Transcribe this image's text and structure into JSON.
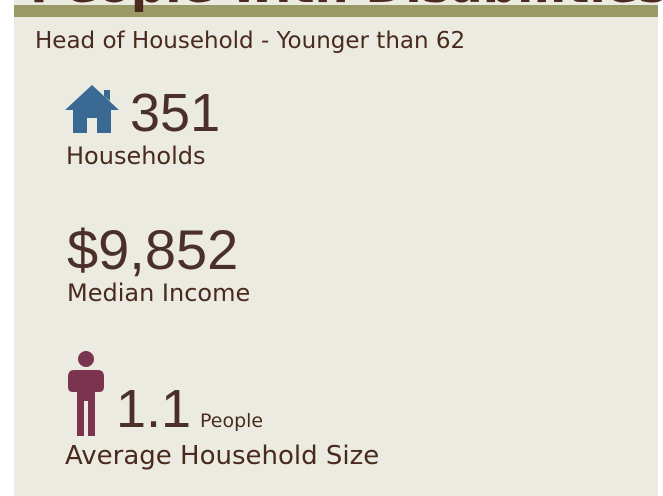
{
  "header": {
    "title": "People with Disabilities",
    "subtitle": "Head of Household - Younger than 62"
  },
  "stats": [
    {
      "value": "351",
      "label": "Households"
    },
    {
      "value": "$9,852",
      "label": "Median Income"
    },
    {
      "value": "1.1",
      "unit": "People",
      "label": "Average Household Size"
    }
  ]
}
